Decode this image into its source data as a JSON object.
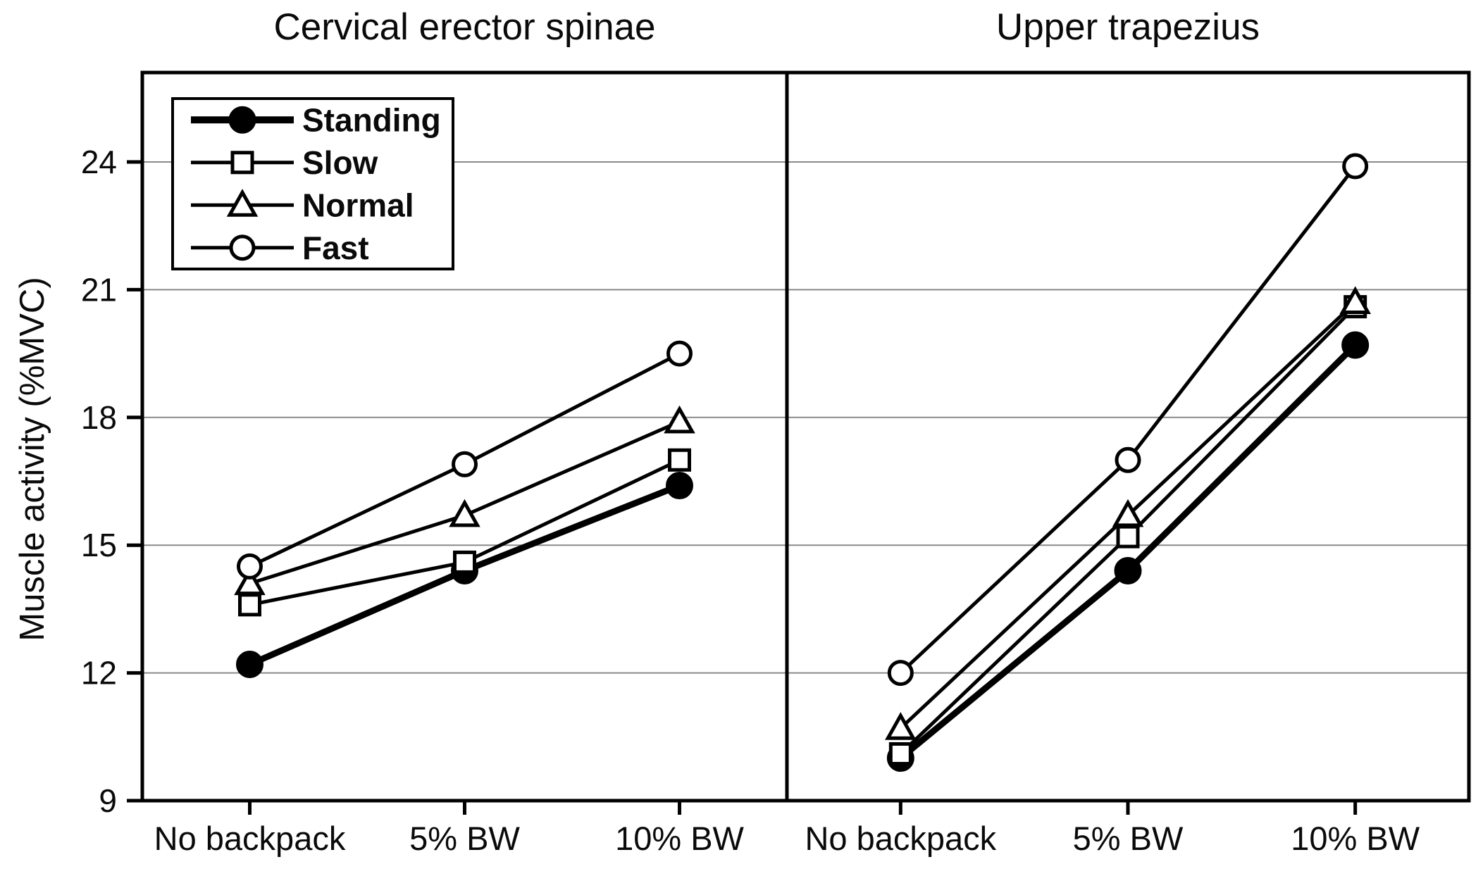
{
  "figure": {
    "y_axis_label": "Muscle activity (%MVC)",
    "background_color": "#ffffff",
    "line_color": "#000000",
    "grid_color": "#8a8a8a"
  },
  "legend": {
    "items": [
      {
        "label": "Standing",
        "marker": "filled-circle"
      },
      {
        "label": "Slow",
        "marker": "open-square"
      },
      {
        "label": "Normal",
        "marker": "open-triangle"
      },
      {
        "label": "Fast",
        "marker": "open-circle"
      }
    ]
  },
  "chart_data": [
    {
      "type": "line",
      "title": "Cervical erector spinae",
      "categories": [
        "No backpack",
        "5% BW",
        "10% BW"
      ],
      "series": [
        {
          "name": "Standing",
          "marker": "filled-circle",
          "values": [
            12.2,
            14.4,
            16.4
          ]
        },
        {
          "name": "Slow",
          "marker": "open-square",
          "values": [
            13.6,
            14.6,
            17.0
          ]
        },
        {
          "name": "Normal",
          "marker": "open-triangle",
          "values": [
            14.1,
            15.7,
            17.9
          ]
        },
        {
          "name": "Fast",
          "marker": "open-circle",
          "values": [
            14.5,
            16.9,
            19.5
          ]
        }
      ],
      "ylabel": "Muscle activity (%MVC)",
      "yticks": [
        9,
        12,
        15,
        18,
        21,
        24
      ],
      "ylim": [
        9,
        26.1
      ],
      "grid": true,
      "legend_position": "top-left"
    },
    {
      "type": "line",
      "title": "Upper trapezius",
      "categories": [
        "No backpack",
        "5% BW",
        "10% BW"
      ],
      "series": [
        {
          "name": "Standing",
          "marker": "filled-circle",
          "values": [
            10.0,
            14.4,
            19.7
          ]
        },
        {
          "name": "Slow",
          "marker": "open-square",
          "values": [
            10.1,
            15.2,
            20.6
          ]
        },
        {
          "name": "Normal",
          "marker": "open-triangle",
          "values": [
            10.7,
            15.7,
            20.7
          ]
        },
        {
          "name": "Fast",
          "marker": "open-circle",
          "values": [
            12.0,
            17.0,
            23.9
          ]
        }
      ],
      "ylabel": "Muscle activity (%MVC)",
      "yticks": [
        9,
        12,
        15,
        18,
        21,
        24
      ],
      "ylim": [
        9,
        26.1
      ],
      "grid": true,
      "legend_position": "none"
    }
  ]
}
